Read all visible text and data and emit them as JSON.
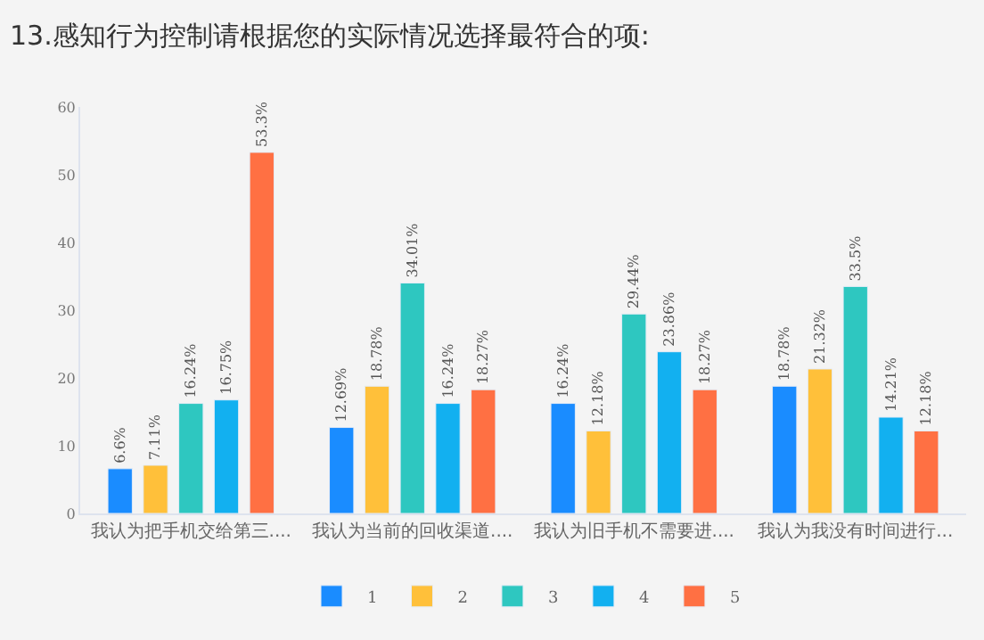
{
  "chart_data": {
    "type": "bar",
    "title": "13.感知行为控制请根据您的实际情况选择最符合的项:",
    "categories": [
      "我认为把手机交给第三....",
      "我认为当前的回收渠道....",
      "我认为旧手机不需要进....",
      "我认为我没有时间进行..."
    ],
    "series": [
      {
        "name": "1",
        "color": "#1a8cff",
        "values": [
          6.6,
          12.69,
          16.24,
          18.78
        ],
        "value_labels": [
          "6.6%",
          "12.69%",
          "16.24%",
          "18.78%"
        ]
      },
      {
        "name": "2",
        "color": "#ffc03a",
        "values": [
          7.11,
          18.78,
          12.18,
          21.32
        ],
        "value_labels": [
          "7.11%",
          "18.78%",
          "12.18%",
          "21.32%"
        ]
      },
      {
        "name": "3",
        "color": "#2ec7c0",
        "values": [
          16.24,
          34.01,
          29.44,
          33.5
        ],
        "value_labels": [
          "16.24%",
          "34.01%",
          "29.44%",
          "33.5%"
        ]
      },
      {
        "name": "4",
        "color": "#12b0f0",
        "values": [
          16.75,
          16.24,
          23.86,
          14.21
        ],
        "value_labels": [
          "16.75%",
          "16.24%",
          "23.86%",
          "14.21%"
        ]
      },
      {
        "name": "5",
        "color": "#ff7043",
        "values": [
          53.3,
          18.27,
          18.27,
          12.18
        ],
        "value_labels": [
          "53.3%",
          "18.27%",
          "18.27%",
          "12.18%"
        ]
      }
    ],
    "ylim": [
      0,
      60
    ],
    "yticks": [
      0,
      10,
      20,
      30,
      40,
      50,
      60
    ],
    "grid": false,
    "legend": "bottom"
  }
}
